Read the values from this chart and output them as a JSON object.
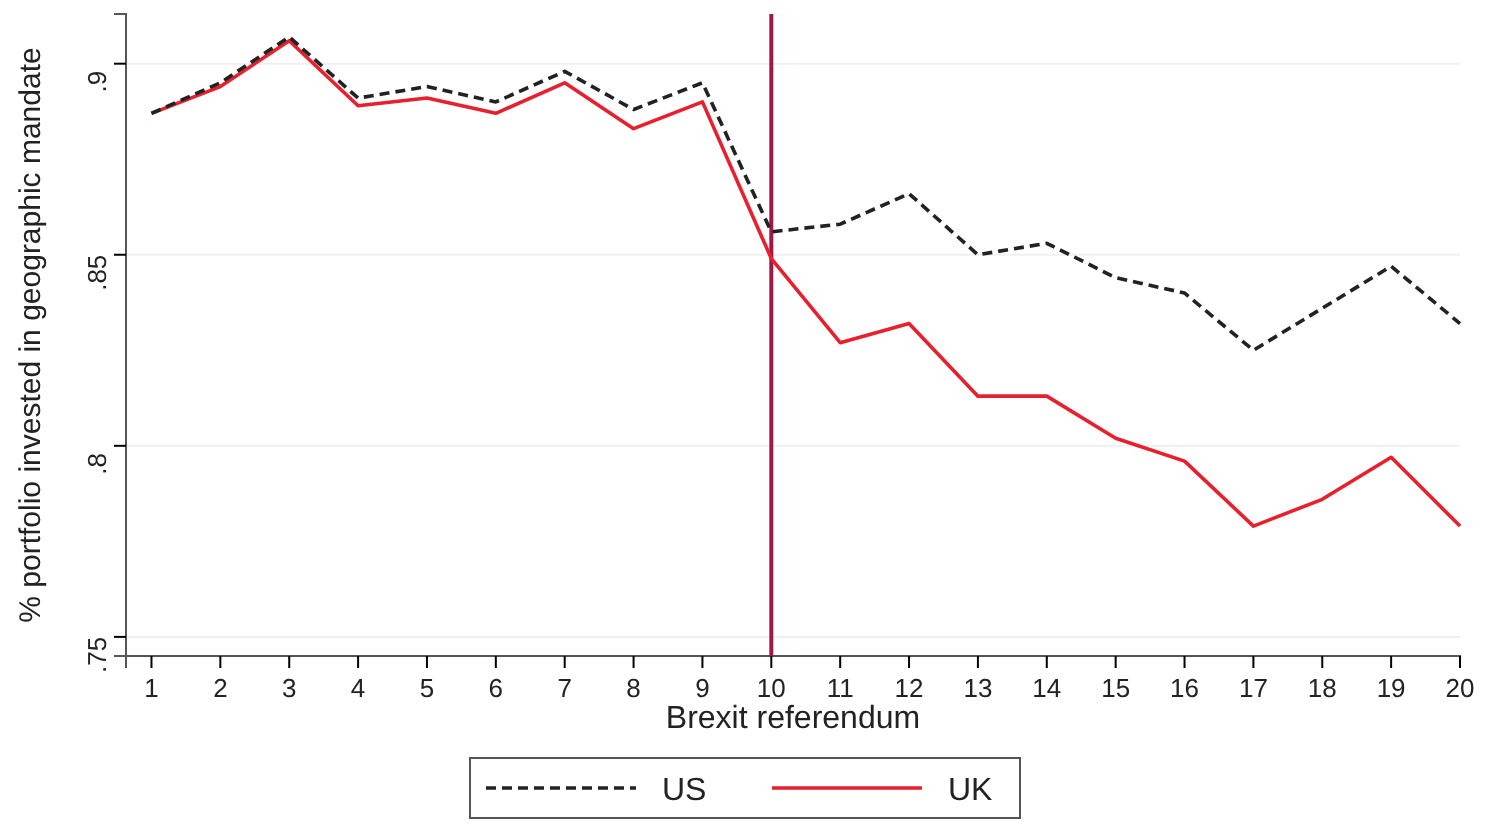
{
  "chart_data": {
    "type": "line",
    "xlabel": "Brexit referendum",
    "ylabel": "% portfolio invested in geographic mandate",
    "x": [
      1,
      2,
      3,
      4,
      5,
      6,
      7,
      8,
      9,
      10,
      11,
      12,
      13,
      14,
      15,
      16,
      17,
      18,
      19,
      20
    ],
    "series": [
      {
        "name": "US",
        "color": "#222222",
        "line_style": "dashed",
        "values": [
          0.887,
          0.895,
          0.907,
          0.891,
          0.894,
          0.89,
          0.898,
          0.888,
          0.895,
          0.856,
          0.858,
          0.866,
          0.85,
          0.853,
          0.844,
          0.84,
          0.825,
          0.836,
          0.847,
          0.832
        ]
      },
      {
        "name": "UK",
        "color": "#e8202e",
        "line_style": "solid",
        "values": [
          0.887,
          0.894,
          0.906,
          0.889,
          0.891,
          0.887,
          0.895,
          0.883,
          0.89,
          0.849,
          0.827,
          0.832,
          0.813,
          0.813,
          0.802,
          0.796,
          0.779,
          0.786,
          0.797,
          0.779
        ]
      }
    ],
    "xlim": [
      0.63,
      20
    ],
    "xticks": [
      1,
      2,
      3,
      4,
      5,
      6,
      7,
      8,
      9,
      10,
      11,
      12,
      13,
      14,
      15,
      16,
      17,
      18,
      19,
      20
    ],
    "ylim": [
      0.745,
      0.913
    ],
    "yticks": [
      {
        "value": 0.75,
        "label": ".75"
      },
      {
        "value": 0.8,
        "label": ".8"
      },
      {
        "value": 0.85,
        "label": ".85"
      },
      {
        "value": 0.9,
        "label": ".9"
      }
    ],
    "ref_lines": [
      {
        "axis": "x",
        "value": 10,
        "label": null,
        "color": "#a0184a"
      }
    ],
    "grid": "y",
    "legend": "bottom"
  }
}
